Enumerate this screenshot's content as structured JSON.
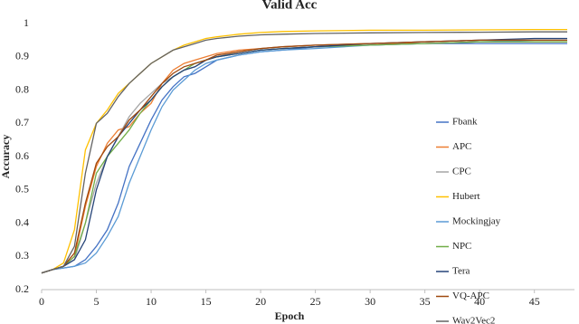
{
  "chart_data": {
    "type": "line",
    "title": "Valid Acc",
    "x_label": "Epoch",
    "y_label": "Accuracy",
    "x": [
      0,
      1,
      2,
      3,
      4,
      5,
      6,
      7,
      8,
      9,
      10,
      11,
      12,
      13,
      14,
      15,
      16,
      18,
      20,
      22,
      25,
      30,
      35,
      40,
      45,
      48
    ],
    "series": [
      {
        "name": "Fbank",
        "color": "#4472c4",
        "values": [
          0.25,
          0.26,
          0.265,
          0.27,
          0.29,
          0.33,
          0.38,
          0.46,
          0.57,
          0.64,
          0.71,
          0.77,
          0.81,
          0.84,
          0.85,
          0.87,
          0.89,
          0.905,
          0.915,
          0.92,
          0.93,
          0.935,
          0.94,
          0.94,
          0.94,
          0.94
        ]
      },
      {
        "name": "APC",
        "color": "#ed7d31",
        "values": [
          0.25,
          0.26,
          0.27,
          0.3,
          0.45,
          0.57,
          0.64,
          0.68,
          0.69,
          0.73,
          0.76,
          0.82,
          0.86,
          0.88,
          0.89,
          0.9,
          0.91,
          0.92,
          0.925,
          0.93,
          0.935,
          0.94,
          0.94,
          0.945,
          0.945,
          0.945
        ]
      },
      {
        "name": "CPC",
        "color": "#a5a5a5",
        "values": [
          0.25,
          0.26,
          0.27,
          0.29,
          0.4,
          0.52,
          0.6,
          0.66,
          0.72,
          0.76,
          0.79,
          0.82,
          0.84,
          0.86,
          0.87,
          0.89,
          0.9,
          0.915,
          0.925,
          0.93,
          0.935,
          0.94,
          0.945,
          0.95,
          0.95,
          0.95
        ]
      },
      {
        "name": "Hubert",
        "color": "#ffc000",
        "values": [
          0.25,
          0.26,
          0.28,
          0.38,
          0.62,
          0.7,
          0.74,
          0.79,
          0.82,
          0.85,
          0.88,
          0.9,
          0.92,
          0.935,
          0.945,
          0.955,
          0.96,
          0.968,
          0.973,
          0.976,
          0.978,
          0.98,
          0.98,
          0.981,
          0.982,
          0.982
        ]
      },
      {
        "name": "Mockingjay",
        "color": "#5b9bd5",
        "values": [
          0.25,
          0.26,
          0.265,
          0.27,
          0.28,
          0.31,
          0.36,
          0.42,
          0.52,
          0.6,
          0.68,
          0.75,
          0.8,
          0.83,
          0.86,
          0.88,
          0.89,
          0.905,
          0.915,
          0.92,
          0.925,
          0.935,
          0.94,
          0.945,
          0.95,
          0.95
        ]
      },
      {
        "name": "NPC",
        "color": "#70ad47",
        "values": [
          0.25,
          0.26,
          0.27,
          0.3,
          0.4,
          0.55,
          0.6,
          0.64,
          0.68,
          0.73,
          0.77,
          0.81,
          0.84,
          0.86,
          0.88,
          0.89,
          0.9,
          0.91,
          0.92,
          0.925,
          0.93,
          0.935,
          0.94,
          0.945,
          0.945,
          0.945
        ]
      },
      {
        "name": "Tera",
        "color": "#264478",
        "values": [
          0.25,
          0.26,
          0.27,
          0.29,
          0.35,
          0.5,
          0.6,
          0.66,
          0.7,
          0.74,
          0.77,
          0.81,
          0.84,
          0.86,
          0.87,
          0.89,
          0.9,
          0.91,
          0.92,
          0.925,
          0.93,
          0.94,
          0.945,
          0.95,
          0.955,
          0.955
        ]
      },
      {
        "name": "VQ-APC",
        "color": "#9e480e",
        "values": [
          0.25,
          0.26,
          0.27,
          0.31,
          0.46,
          0.58,
          0.63,
          0.66,
          0.71,
          0.74,
          0.78,
          0.82,
          0.85,
          0.87,
          0.88,
          0.89,
          0.905,
          0.915,
          0.925,
          0.93,
          0.935,
          0.94,
          0.945,
          0.95,
          0.95,
          0.95
        ]
      },
      {
        "name": "Wav2Vec2",
        "color": "#636363",
        "values": [
          0.25,
          0.26,
          0.27,
          0.33,
          0.55,
          0.7,
          0.73,
          0.78,
          0.82,
          0.85,
          0.88,
          0.9,
          0.92,
          0.93,
          0.94,
          0.95,
          0.955,
          0.962,
          0.966,
          0.968,
          0.97,
          0.972,
          0.973,
          0.974,
          0.975,
          0.975
        ]
      }
    ],
    "xlim": [
      0,
      48
    ],
    "xticks": [
      0,
      5,
      10,
      15,
      20,
      25,
      30,
      35,
      40,
      45
    ],
    "ylim": [
      0.2,
      1
    ],
    "yticks": [
      0.2,
      0.3,
      0.4,
      0.5,
      0.6,
      0.7,
      0.8,
      0.9,
      1
    ],
    "grid": false,
    "legend": "right"
  }
}
